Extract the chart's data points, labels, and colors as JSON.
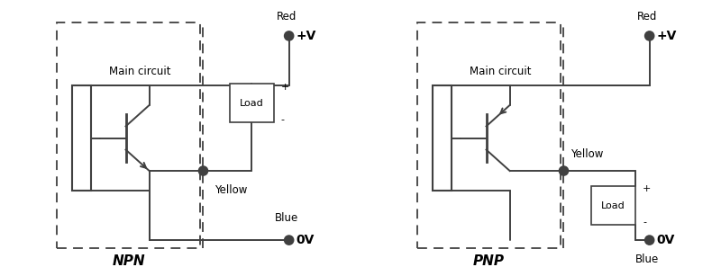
{
  "fig_width": 8.0,
  "fig_height": 3.07,
  "dpi": 100,
  "bg_color": "#ffffff",
  "line_color": "#404040",
  "text_color": "#000000",
  "npn_label": "NPN",
  "pnp_label": "PNP",
  "main_circuit_label": "Main circuit",
  "load_label": "Load",
  "red_label": "Red",
  "yellow_label": "Yellow",
  "blue_label": "Blue",
  "vplus_label": "+V",
  "vzero_label": "0V",
  "plus_label": "+",
  "minus_label": "-"
}
